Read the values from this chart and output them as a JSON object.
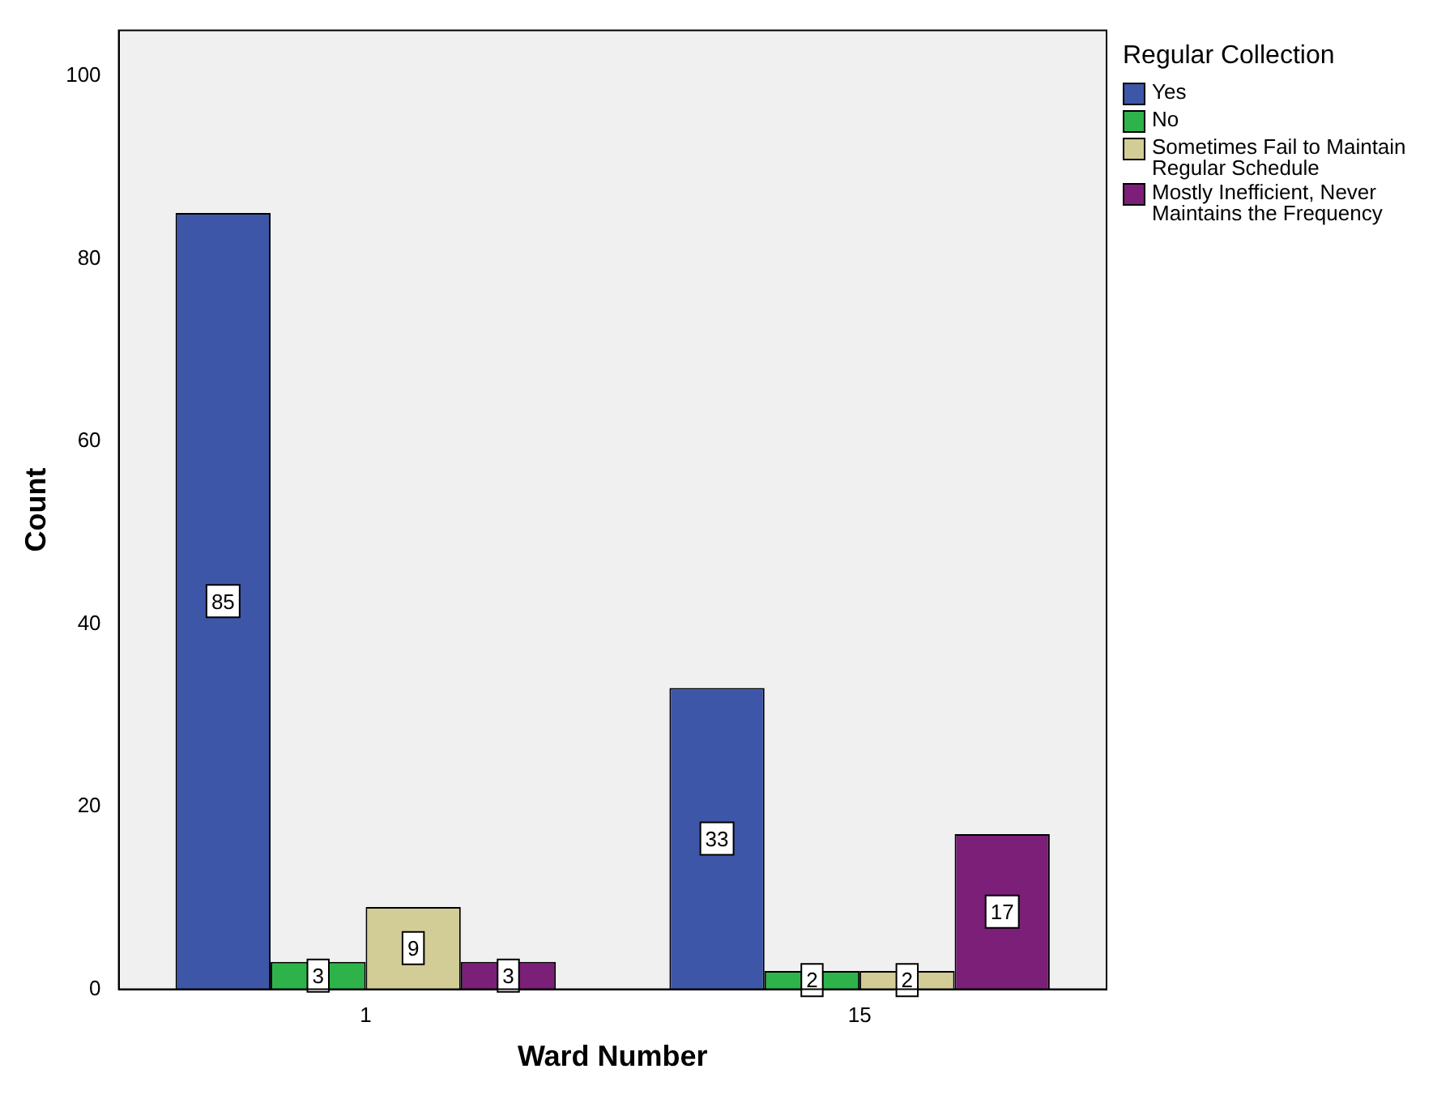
{
  "chart_data": {
    "type": "bar",
    "xlabel": "Ward Number",
    "ylabel": "Count",
    "legend_title": "Regular Collection",
    "categories": [
      "1",
      "15"
    ],
    "series": [
      {
        "name": "Yes",
        "color": "#3d56a8",
        "values": [
          85,
          33
        ]
      },
      {
        "name": "No",
        "color": "#2db34a",
        "values": [
          3,
          2
        ]
      },
      {
        "name": "Sometimes Fail to Maintain Regular Schedule",
        "color": "#d2cc96",
        "values": [
          9,
          2
        ]
      },
      {
        "name": "Mostly Inefficient, Never Maintains the Frequency",
        "color": "#7b1f78",
        "values": [
          3,
          17
        ]
      }
    ],
    "ylim": [
      0,
      105
    ],
    "yticks": [
      0,
      20,
      40,
      60,
      80,
      100
    ],
    "grid": false,
    "legend": "right",
    "data_labels": true
  }
}
